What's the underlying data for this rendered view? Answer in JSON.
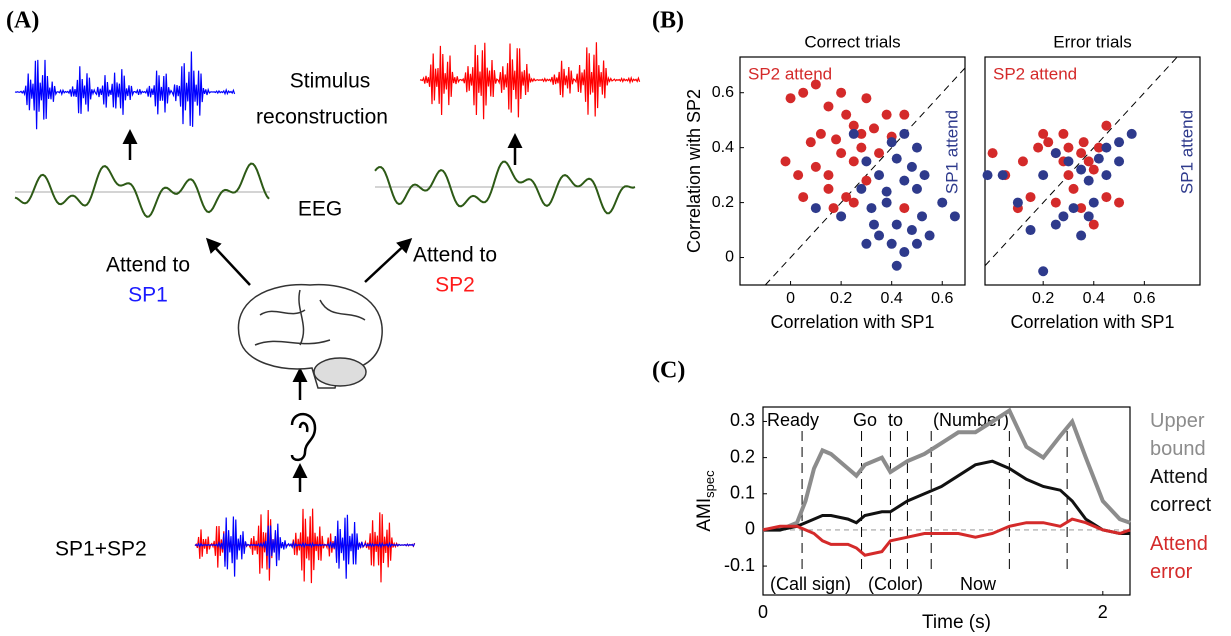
{
  "panel_labels": [
    "(A)",
    "(B)",
    "(C)"
  ],
  "diagram": {
    "stimulus_reconstruction": [
      "Stimulus",
      "reconstruction"
    ],
    "eeg": "EEG",
    "attend_left": [
      "Attend to",
      "SP1"
    ],
    "attend_right": [
      "Attend to",
      "SP2"
    ],
    "mixture": "SP1+SP2"
  },
  "chart_data": [
    {
      "type": "scatter",
      "title": "Correct trials",
      "xlabel": "Correlation with SP1",
      "ylabel": "Correlation with SP2",
      "xlim": [
        -0.2,
        0.69
      ],
      "ylim": [
        -0.1,
        0.73
      ],
      "xticks": [
        0,
        0.2,
        0.4,
        0.6
      ],
      "yticks": [
        0,
        0.2,
        0.4,
        0.6
      ],
      "diagonal": true,
      "series": [
        {
          "name": "SP2 attend",
          "color": "#d42a2a",
          "x": [
            0.0,
            0.05,
            0.1,
            0.15,
            0.2,
            0.22,
            0.25,
            0.28,
            0.3,
            0.12,
            0.18,
            0.08,
            -0.02,
            0.03,
            0.1,
            0.15,
            0.2,
            0.25,
            0.28,
            0.33,
            0.38,
            0.15,
            0.22,
            0.3,
            0.4,
            0.45,
            0.05,
            0.25,
            0.35,
            0.45,
            0.17
          ],
          "values": [
            0.58,
            0.6,
            0.63,
            0.55,
            0.6,
            0.52,
            0.48,
            0.45,
            0.58,
            0.45,
            0.43,
            0.42,
            0.35,
            0.3,
            0.33,
            0.3,
            0.38,
            0.35,
            0.4,
            0.47,
            0.52,
            0.25,
            0.22,
            0.28,
            0.44,
            0.52,
            0.22,
            0.2,
            0.38,
            0.18,
            0.18
          ]
        },
        {
          "name": "SP1 attend",
          "color": "#2e3a8c",
          "x": [
            0.25,
            0.3,
            0.35,
            0.4,
            0.42,
            0.45,
            0.48,
            0.5,
            0.38,
            0.32,
            0.28,
            0.42,
            0.48,
            0.52,
            0.55,
            0.4,
            0.35,
            0.3,
            0.45,
            0.5,
            0.53,
            0.45,
            0.2,
            0.1,
            0.6,
            0.65,
            0.42,
            0.38,
            0.5,
            0.33
          ],
          "values": [
            0.45,
            0.35,
            0.3,
            0.42,
            0.36,
            0.28,
            0.33,
            0.25,
            0.2,
            0.18,
            0.25,
            0.12,
            0.1,
            0.15,
            0.08,
            0.05,
            0.08,
            0.05,
            0.02,
            0.05,
            0.3,
            0.45,
            0.15,
            0.18,
            0.2,
            0.15,
            -0.03,
            0.24,
            0.4,
            0.12
          ]
        }
      ]
    },
    {
      "type": "scatter",
      "title": "Error trials",
      "xlabel": "Correlation with SP1",
      "xlim": [
        -0.03,
        0.82
      ],
      "ylim": [
        -0.1,
        0.73
      ],
      "xticks": [
        0.2,
        0.4,
        0.6
      ],
      "yticks": [],
      "diagonal": true,
      "series": [
        {
          "name": "SP2 attend",
          "color": "#d42a2a",
          "x": [
            0.0,
            0.05,
            0.12,
            0.18,
            0.2,
            0.22,
            0.25,
            0.28,
            0.3,
            0.35,
            0.38,
            0.4,
            0.42,
            0.45,
            0.3,
            0.32,
            0.15,
            0.25,
            0.35,
            0.45,
            0.5,
            0.1,
            0.4,
            0.28,
            0.36
          ],
          "values": [
            0.38,
            0.3,
            0.35,
            0.4,
            0.45,
            0.42,
            0.38,
            0.45,
            0.4,
            0.38,
            0.35,
            0.32,
            0.4,
            0.48,
            0.3,
            0.25,
            0.22,
            0.2,
            0.18,
            0.22,
            0.2,
            0.18,
            0.12,
            0.35,
            0.42
          ]
        },
        {
          "name": "SP1 attend",
          "color": "#2e3a8c",
          "x": [
            -0.02,
            0.04,
            0.1,
            0.2,
            0.25,
            0.3,
            0.35,
            0.38,
            0.42,
            0.45,
            0.5,
            0.55,
            0.28,
            0.32,
            0.38,
            0.4,
            0.25,
            0.35,
            0.2,
            0.15,
            0.45,
            0.5
          ],
          "values": [
            0.3,
            0.3,
            0.2,
            0.3,
            0.38,
            0.35,
            0.32,
            0.28,
            0.36,
            0.4,
            0.42,
            0.45,
            0.15,
            0.18,
            0.15,
            0.2,
            0.12,
            0.08,
            -0.05,
            0.1,
            0.3,
            0.35
          ]
        }
      ]
    },
    {
      "type": "line",
      "ylabel": "AMI",
      "ylabel_sub": "spec",
      "xlabel": "Time (s)",
      "xlim": [
        0,
        2.16
      ],
      "ylim": [
        -0.18,
        0.34
      ],
      "xticks": [
        0,
        2
      ],
      "yticks": [
        0.3,
        0.2,
        0.1,
        0,
        -0.1
      ],
      "event_lines": [
        0.23,
        0.58,
        0.75,
        0.85,
        0.99,
        1.45,
        1.79
      ],
      "annotations_top": [
        "Ready",
        "Go",
        "to",
        "(Number)"
      ],
      "annotations_bottom": [
        "(Call sign)",
        "(Color)",
        "Now"
      ],
      "x": [
        0,
        0.1,
        0.2,
        0.25,
        0.3,
        0.35,
        0.4,
        0.5,
        0.55,
        0.6,
        0.7,
        0.75,
        0.85,
        0.95,
        1.05,
        1.15,
        1.25,
        1.35,
        1.45,
        1.55,
        1.65,
        1.75,
        1.82,
        1.9,
        2.0,
        2.1,
        2.16
      ],
      "series": [
        {
          "name": "Upper bound",
          "color": "#8c8c8c",
          "values": [
            0,
            0,
            0.02,
            0.08,
            0.17,
            0.22,
            0.21,
            0.17,
            0.15,
            0.18,
            0.2,
            0.16,
            0.19,
            0.21,
            0.24,
            0.27,
            0.27,
            0.3,
            0.33,
            0.23,
            0.2,
            0.26,
            0.3,
            0.2,
            0.08,
            0.03,
            0.02
          ]
        },
        {
          "name": "Attend correct",
          "color": "#111111",
          "values": [
            0,
            0,
            0.01,
            0.02,
            0.03,
            0.04,
            0.04,
            0.03,
            0.02,
            0.04,
            0.05,
            0.05,
            0.08,
            0.1,
            0.12,
            0.15,
            0.18,
            0.19,
            0.17,
            0.14,
            0.12,
            0.11,
            0.08,
            0.03,
            0.0,
            -0.01,
            -0.01
          ]
        },
        {
          "name": "Attend error",
          "color": "#d42a2a",
          "values": [
            0,
            0.01,
            0.01,
            0,
            -0.01,
            -0.03,
            -0.04,
            -0.04,
            -0.05,
            -0.07,
            -0.06,
            -0.03,
            -0.02,
            -0.01,
            -0.01,
            -0.01,
            -0.02,
            -0.01,
            0.01,
            0.02,
            0.02,
            0.01,
            0.03,
            0.02,
            0.0,
            -0.01,
            0.0
          ]
        }
      ]
    }
  ]
}
